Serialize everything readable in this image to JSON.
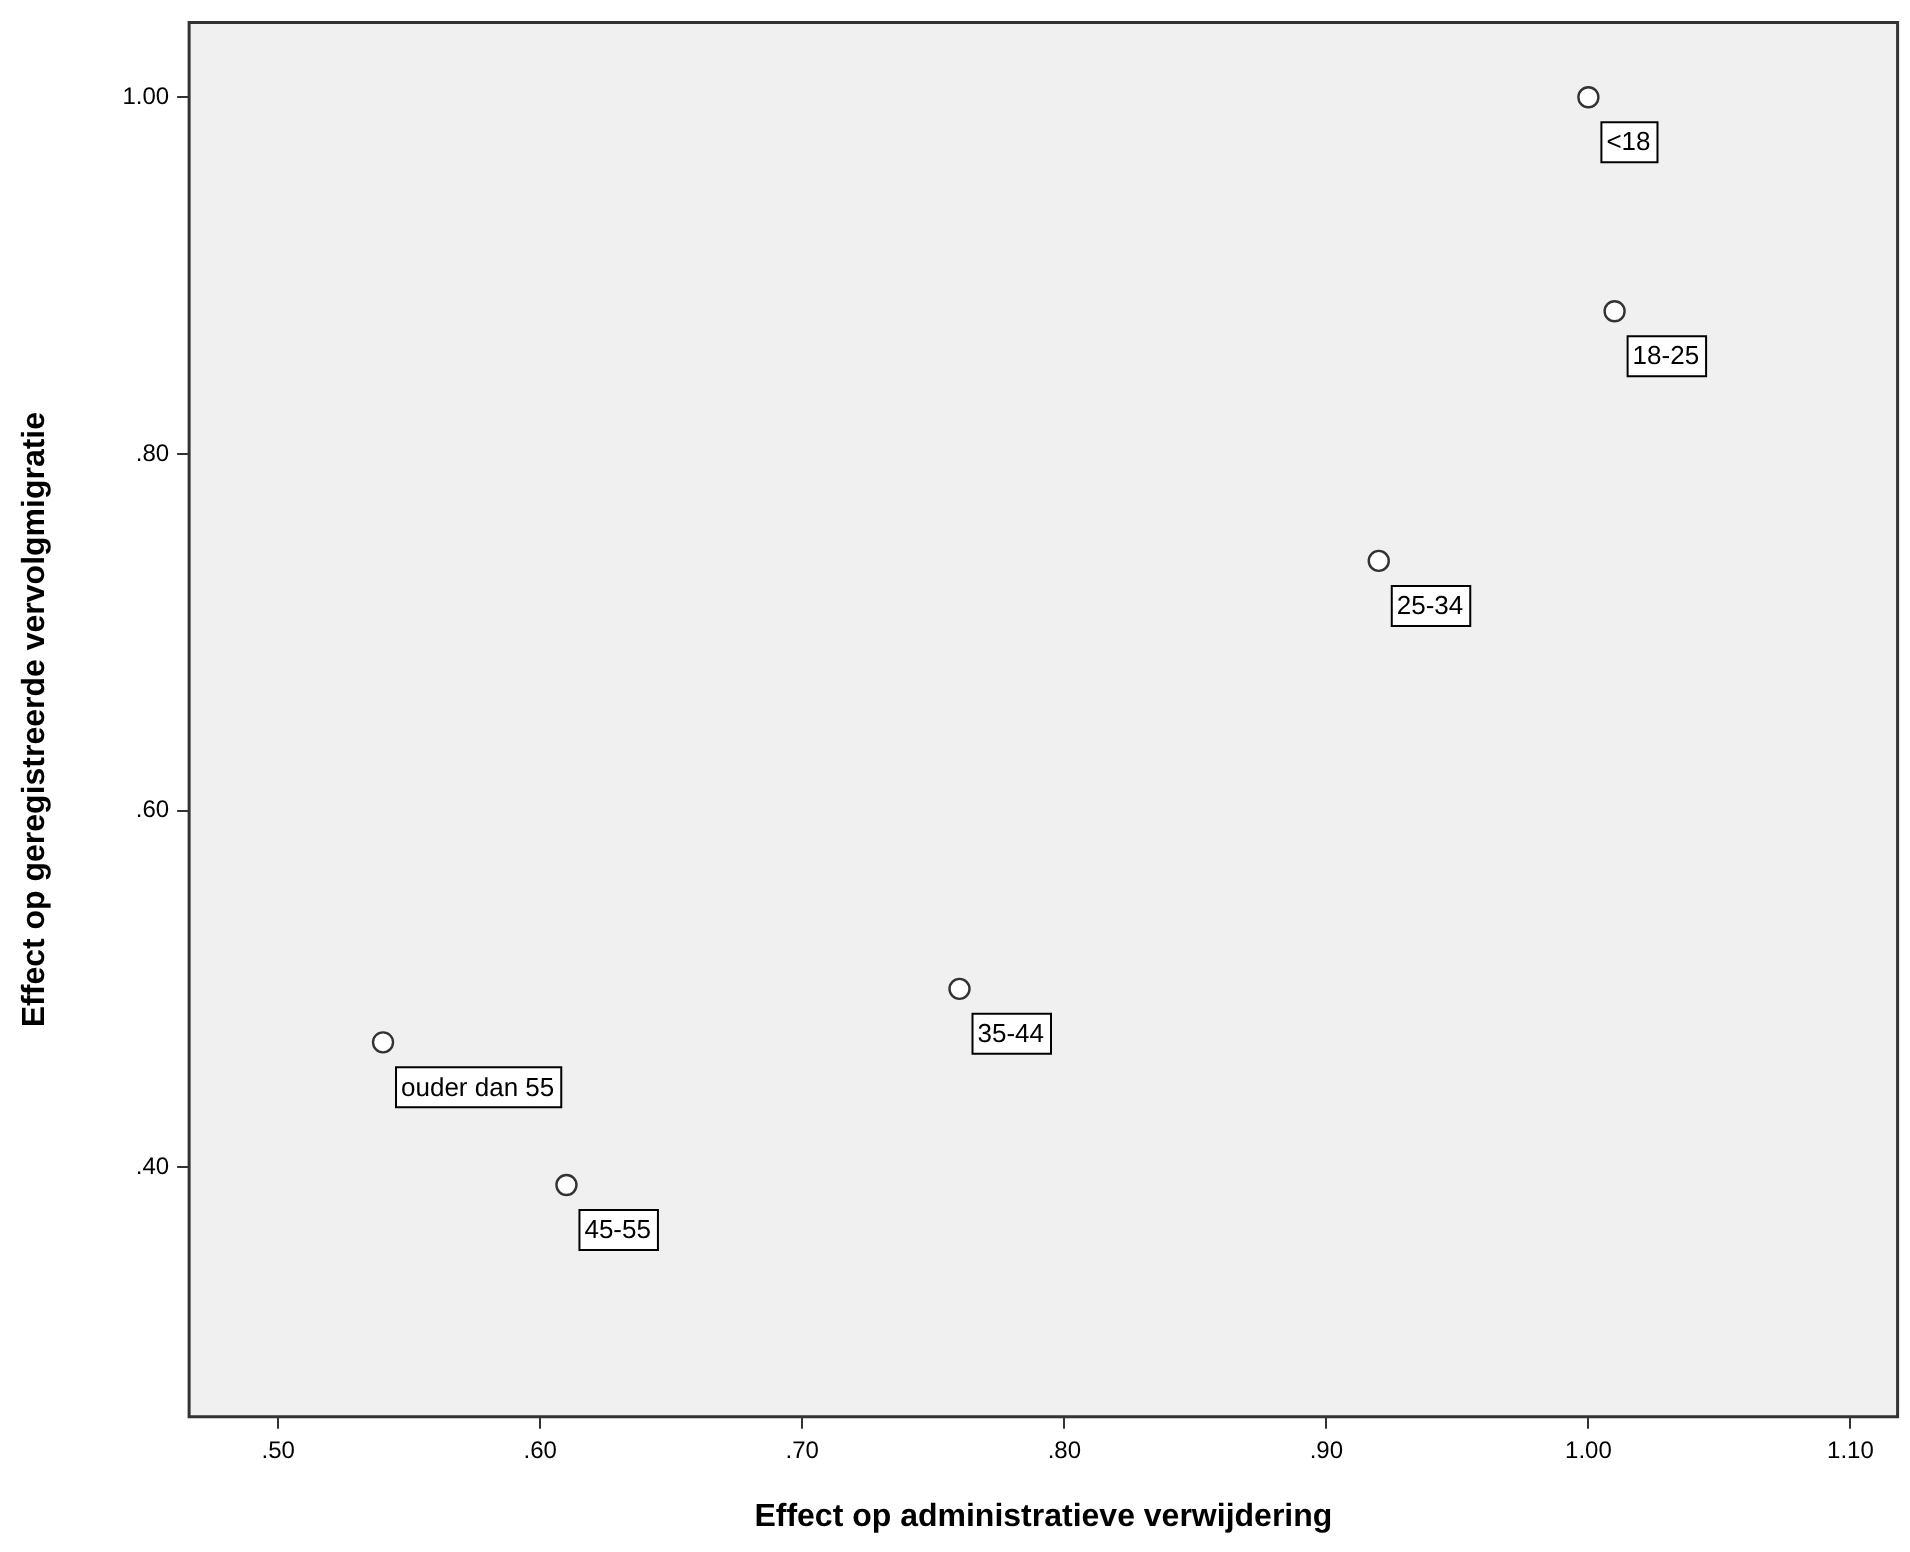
{
  "chart_data": {
    "type": "scatter",
    "xlabel": "Effect op administratieve verwijdering",
    "ylabel": "Effect op geregistreerde vervolgmigratie",
    "x": [
      1.0,
      1.01,
      0.92,
      0.76,
      0.54,
      0.61
    ],
    "series": [
      {
        "color": "#333333",
        "values": [
          1.0,
          0.88,
          0.74,
          0.5,
          0.47,
          0.39
        ]
      }
    ],
    "marker": "circle",
    "xlim": [
      0.466,
      1.118
    ],
    "xticks": [
      {
        "value": 0.5,
        "label": ".50"
      },
      {
        "value": 0.6,
        "label": ".60"
      },
      {
        "value": 0.7,
        "label": ".70"
      },
      {
        "value": 0.8,
        "label": ".80"
      },
      {
        "value": 0.9,
        "label": ".90"
      },
      {
        "value": 1.0,
        "label": "1.00"
      },
      {
        "value": 1.1,
        "label": "1.10"
      }
    ],
    "ylim": [
      0.26,
      1.042
    ],
    "yticks": [
      {
        "value": 0.4,
        "label": ".40"
      },
      {
        "value": 0.6,
        "label": ".60"
      },
      {
        "value": 0.8,
        "label": ".80"
      },
      {
        "value": 1.0,
        "label": "1.00"
      }
    ],
    "grid": false,
    "legend": false,
    "annotations": [
      {
        "text": "<18",
        "x": 1.0,
        "y": 1.0
      },
      {
        "text": "18-25",
        "x": 1.01,
        "y": 0.88
      },
      {
        "text": "25-34",
        "x": 0.92,
        "y": 0.74
      },
      {
        "text": "35-44",
        "x": 0.76,
        "y": 0.5
      },
      {
        "text": "ouder dan 55",
        "x": 0.54,
        "y": 0.47
      },
      {
        "text": "45-55",
        "x": 0.61,
        "y": 0.39
      }
    ]
  }
}
